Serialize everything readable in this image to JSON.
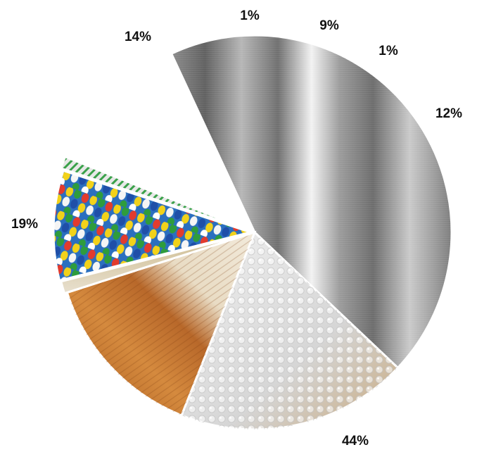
{
  "chart_data": {
    "type": "pie",
    "title": "",
    "legend": "none",
    "slices": [
      {
        "label": "44%",
        "value": 44,
        "color": "#b8b8b8",
        "texture": "brushed-metal-icon"
      },
      {
        "label": "19%",
        "value": 19,
        "color": "#e3e3e3",
        "texture": "bubble-wrap-icon"
      },
      {
        "label": "14%",
        "value": 14,
        "color": "#c4742f",
        "texture": "wood-brush-icon"
      },
      {
        "label": "1%",
        "value": 1,
        "color": "#d7c9a6",
        "texture": "paper-icon"
      },
      {
        "label": "9%",
        "value": 9,
        "color": "#3aa14a",
        "texture": "plastic-pellets-icon"
      },
      {
        "label": "1%",
        "value": 1,
        "color": "#cfcfcf",
        "texture": "striped-wire-icon"
      },
      {
        "label": "12%",
        "value": 12,
        "color": "#ffffff",
        "texture": "electrical-cables-icon"
      }
    ]
  }
}
